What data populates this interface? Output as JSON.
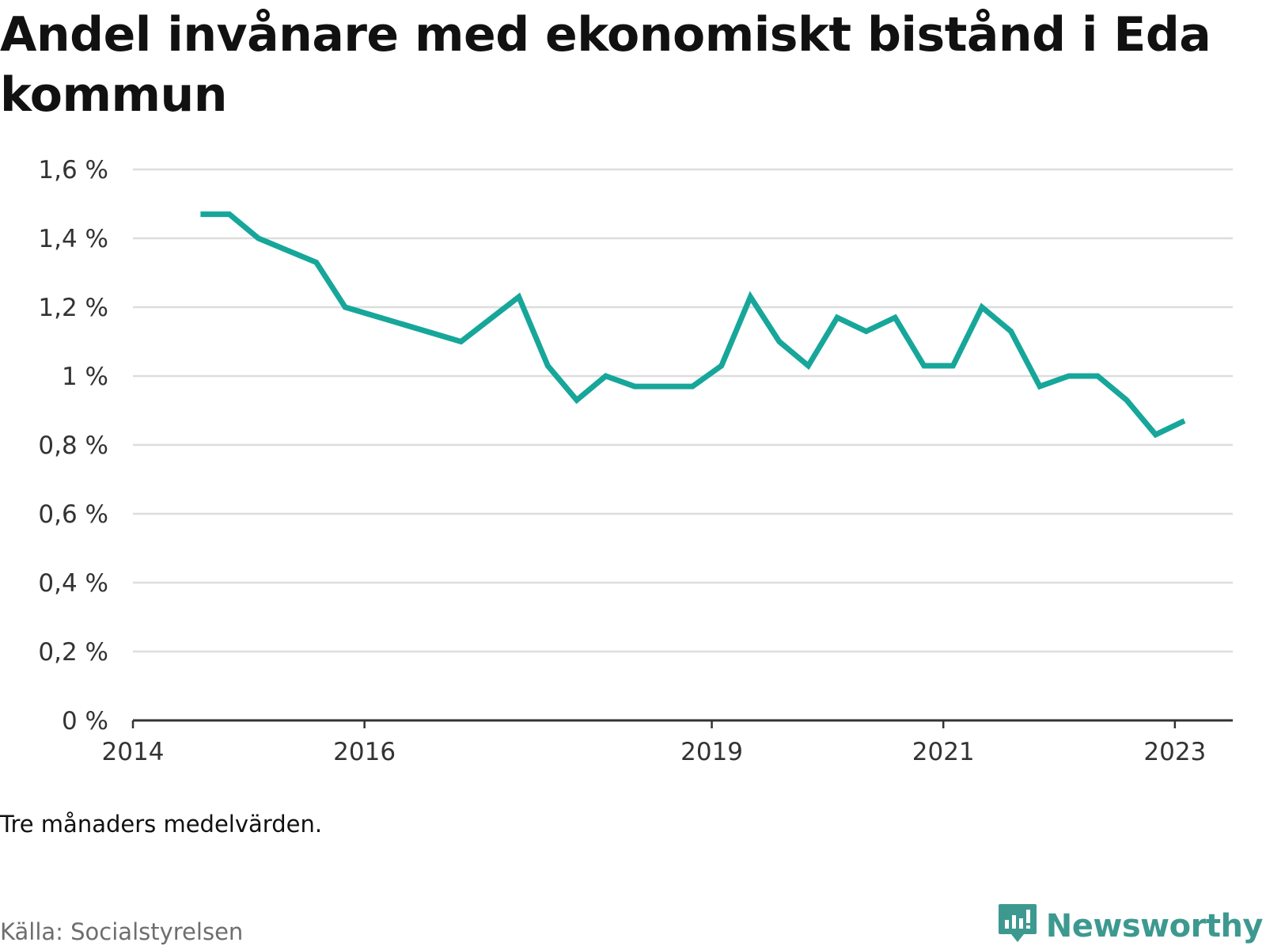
{
  "title": "Andel invånare med ekonomiskt bistånd i Eda kommun",
  "note": "Tre månaders medelvärden.",
  "source": "Källa: Socialstyrelsen",
  "brand": {
    "name": "Newsworthy",
    "icon": "newsworthy-logo-icon"
  },
  "colors": {
    "line": "#17a69a",
    "grid": "#dddddd",
    "axis": "#333333",
    "brand": "#3d9990"
  },
  "chart_data": {
    "type": "line",
    "title": "Andel invånare med ekonomiskt bistånd i Eda kommun",
    "xlabel": "",
    "ylabel": "",
    "x_ticks": [
      "2014",
      "2016",
      "2019",
      "2021",
      "2023"
    ],
    "y_ticks": [
      "0 %",
      "0,2 %",
      "0,4 %",
      "0,6 %",
      "0,8 %",
      "1 %",
      "1,2 %",
      "1,4 %",
      "1,6 %"
    ],
    "ylim": [
      0,
      1.6
    ],
    "xlim": [
      "2014-01",
      "2023-07"
    ],
    "grid": true,
    "legend": "none",
    "series": [
      {
        "values": [
          {
            "x": "2014-08",
            "y": 1.47
          },
          {
            "x": "2014-11",
            "y": 1.47
          },
          {
            "x": "2015-02",
            "y": 1.4
          },
          {
            "x": "2015-08",
            "y": 1.33
          },
          {
            "x": "2015-11",
            "y": 1.2
          },
          {
            "x": "2016-11",
            "y": 1.1
          },
          {
            "x": "2017-05",
            "y": 1.23
          },
          {
            "x": "2017-08",
            "y": 1.03
          },
          {
            "x": "2017-11",
            "y": 0.93
          },
          {
            "x": "2018-02",
            "y": 1.0
          },
          {
            "x": "2018-05",
            "y": 0.97
          },
          {
            "x": "2018-11",
            "y": 0.97
          },
          {
            "x": "2019-02",
            "y": 1.03
          },
          {
            "x": "2019-05",
            "y": 1.23
          },
          {
            "x": "2019-08",
            "y": 1.1
          },
          {
            "x": "2019-11",
            "y": 1.03
          },
          {
            "x": "2020-02",
            "y": 1.17
          },
          {
            "x": "2020-05",
            "y": 1.13
          },
          {
            "x": "2020-08",
            "y": 1.17
          },
          {
            "x": "2020-11",
            "y": 1.03
          },
          {
            "x": "2021-02",
            "y": 1.03
          },
          {
            "x": "2021-05",
            "y": 1.2
          },
          {
            "x": "2021-08",
            "y": 1.13
          },
          {
            "x": "2021-11",
            "y": 0.97
          },
          {
            "x": "2022-02",
            "y": 1.0
          },
          {
            "x": "2022-05",
            "y": 1.0
          },
          {
            "x": "2022-08",
            "y": 0.93
          },
          {
            "x": "2022-11",
            "y": 0.83
          },
          {
            "x": "2023-02",
            "y": 0.87
          }
        ]
      }
    ]
  }
}
